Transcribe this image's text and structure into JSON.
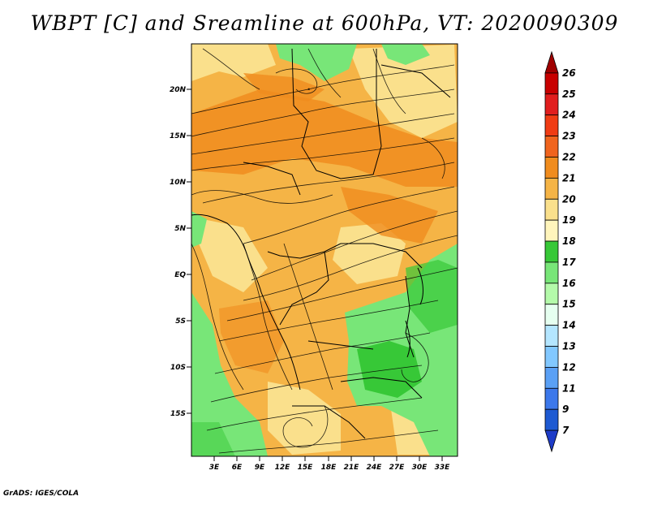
{
  "title": "WBPT [C] and Sreamline at 600hPa, VT: 2020090309",
  "footer": "GrADS: IGES/COLA",
  "map": {
    "lat_ticks": [
      "20N",
      "15N",
      "10N",
      "5N",
      "EQ",
      "5S",
      "10S",
      "15S"
    ],
    "lon_ticks": [
      "3E",
      "6E",
      "9E",
      "12E",
      "15E",
      "18E",
      "21E",
      "24E",
      "27E",
      "30E",
      "33E"
    ]
  },
  "colorbar": {
    "labels": [
      "26",
      "25",
      "24",
      "23",
      "22",
      "21",
      "20",
      "19",
      "18",
      "17",
      "16",
      "15",
      "14",
      "13",
      "12",
      "11",
      "9",
      "7"
    ],
    "colors": [
      "#a00000",
      "#c80000",
      "#e11e1e",
      "#f03c14",
      "#f0641e",
      "#f08c1e",
      "#f5b446",
      "#fae08c",
      "#fff5bc",
      "#37c837",
      "#78e678",
      "#b4faaa",
      "#e6fff0",
      "#b4e6ff",
      "#82c8ff",
      "#5aa0f5",
      "#3c78eb",
      "#1e5ad2",
      "#1e3cc8"
    ]
  },
  "colors": {
    "warm_orange": "#f5b446",
    "light_yellow": "#fae08c",
    "deep_orange": "#f08c1e",
    "green": "#78e678",
    "dark_green": "#37c837"
  }
}
